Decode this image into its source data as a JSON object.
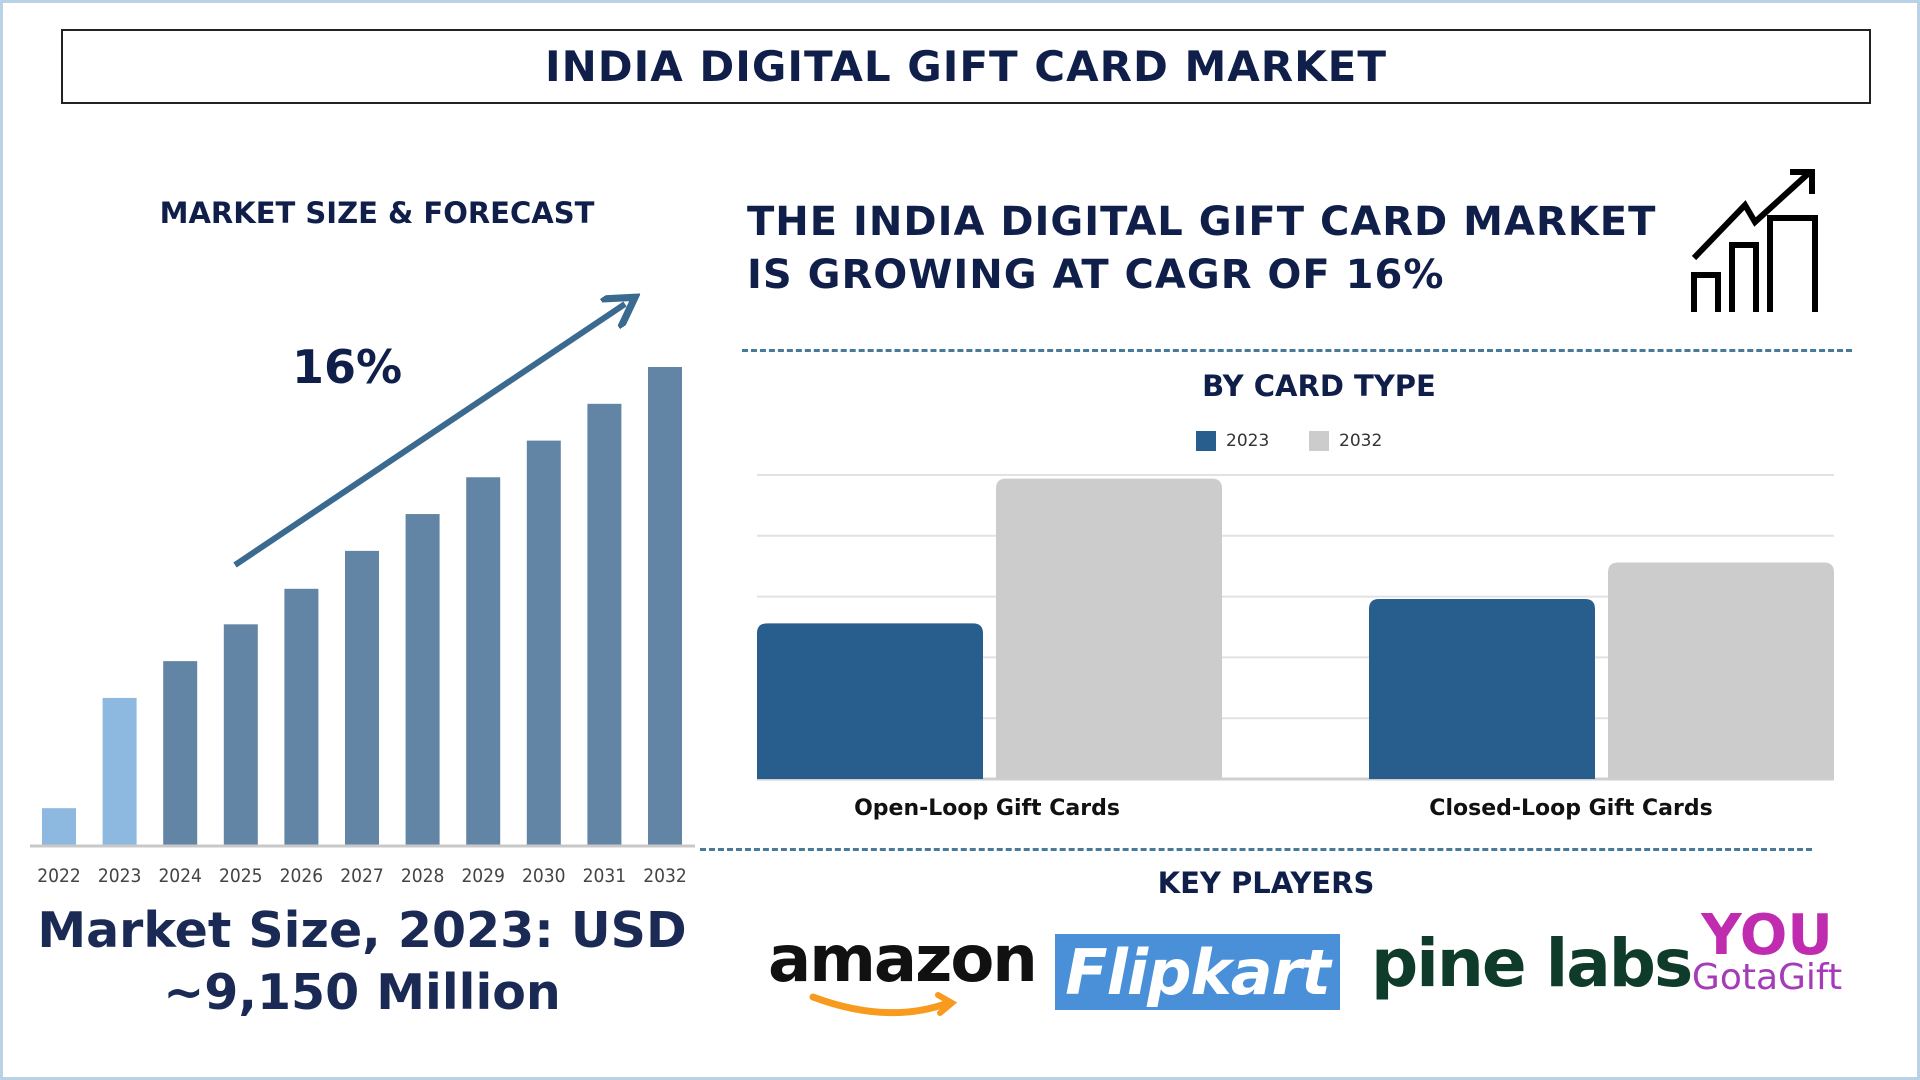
{
  "title": "INDIA DIGITAL GIFT CARD MARKET",
  "left_panel": {
    "heading": "MARKET SIZE & FORECAST",
    "cagr_label": "16%",
    "market_size_line1": "Market Size, 2023: USD",
    "market_size_line2": "~9,150 Million"
  },
  "headline": {
    "line1": "THE INDIA DIGITAL GIFT CARD MARKET",
    "line2": "IS GROWING AT CAGR OF 16%",
    "icon": "growth-chart-icon"
  },
  "key_players": {
    "heading": "KEY PLAYERS",
    "logos": [
      "amazon",
      "Flipkart",
      "pine labs",
      "YOU GotaGift"
    ]
  },
  "colors": {
    "navy": "#0f1f4a",
    "bar_history": "#8db8e0",
    "bar_forecast": "#6285a6",
    "series_2023": "#285e8e",
    "series_2032": "#cccccc",
    "arrow": "#3a6a8f"
  },
  "chart_data": [
    {
      "type": "bar",
      "title": "MARKET SIZE & FORECAST",
      "categories": [
        "2022",
        "2023",
        "2024",
        "2025",
        "2026",
        "2027",
        "2028",
        "2029",
        "2030",
        "2031",
        "2032"
      ],
      "values": [
        2290,
        9150,
        11440,
        13730,
        15940,
        18300,
        20590,
        22880,
        25160,
        27450,
        29740
      ],
      "historical_until": "2023",
      "annotation": "16%",
      "grid": false
    },
    {
      "type": "bar",
      "title": "BY CARD TYPE",
      "categories": [
        "Open-Loop Gift Cards",
        "Closed-Loop Gift Cards"
      ],
      "series": [
        {
          "name": "2023",
          "values": [
            2.56,
            2.96
          ]
        },
        {
          "name": "2032",
          "values": [
            4.94,
            3.56
          ]
        }
      ],
      "ylim": [
        0,
        5
      ],
      "grid": true,
      "legend": "top"
    }
  ]
}
